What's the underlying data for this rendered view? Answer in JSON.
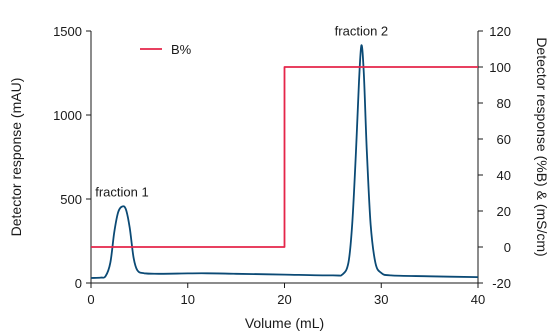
{
  "chart_data": {
    "type": "line",
    "x": {
      "label": "Volume (mL)",
      "range": [
        0,
        40
      ],
      "ticks": [
        0,
        10,
        20,
        30,
        40
      ]
    },
    "y_left": {
      "label": "Detector response (mAU)",
      "range": [
        0,
        1500
      ],
      "ticks": [
        0,
        500,
        1000,
        1500
      ]
    },
    "y_right": {
      "label": "Detector response (%B) & (mS/cm)",
      "range": [
        -20,
        120
      ],
      "ticks": [
        -20,
        0,
        20,
        40,
        60,
        80,
        100,
        120
      ]
    },
    "grid": false,
    "legend": {
      "position": "top-left",
      "entries": [
        "B%"
      ]
    },
    "series": [
      {
        "axis": "left",
        "color": "#0b4a75",
        "points": [
          [
            0,
            30
          ],
          [
            1,
            32
          ],
          [
            1.5,
            40
          ],
          [
            2,
            120
          ],
          [
            2.4,
            300
          ],
          [
            2.8,
            420
          ],
          [
            3.2,
            455
          ],
          [
            3.6,
            440
          ],
          [
            4,
            330
          ],
          [
            4.4,
            150
          ],
          [
            4.8,
            75
          ],
          [
            5.5,
            58
          ],
          [
            7,
            55
          ],
          [
            10,
            57
          ],
          [
            12,
            58
          ],
          [
            15,
            55
          ],
          [
            20,
            50
          ],
          [
            25,
            45
          ],
          [
            26,
            52
          ],
          [
            26.6,
            120
          ],
          [
            27,
            350
          ],
          [
            27.4,
            800
          ],
          [
            27.7,
            1200
          ],
          [
            27.95,
            1415
          ],
          [
            28.2,
            1250
          ],
          [
            28.5,
            800
          ],
          [
            28.9,
            350
          ],
          [
            29.4,
            120
          ],
          [
            30,
            60
          ],
          [
            31,
            45
          ],
          [
            35,
            40
          ],
          [
            40,
            35
          ]
        ]
      },
      {
        "name": "B%",
        "axis": "right",
        "color": "#e5254a",
        "points": [
          [
            0,
            0
          ],
          [
            20,
            0
          ],
          [
            20,
            100
          ],
          [
            40,
            100
          ]
        ]
      }
    ],
    "annotations": [
      {
        "text": "fraction 1",
        "x": 3.2,
        "y": 455,
        "axis": "left"
      },
      {
        "text": "fraction 2",
        "x": 27.95,
        "y": 1415,
        "axis": "left"
      }
    ]
  }
}
